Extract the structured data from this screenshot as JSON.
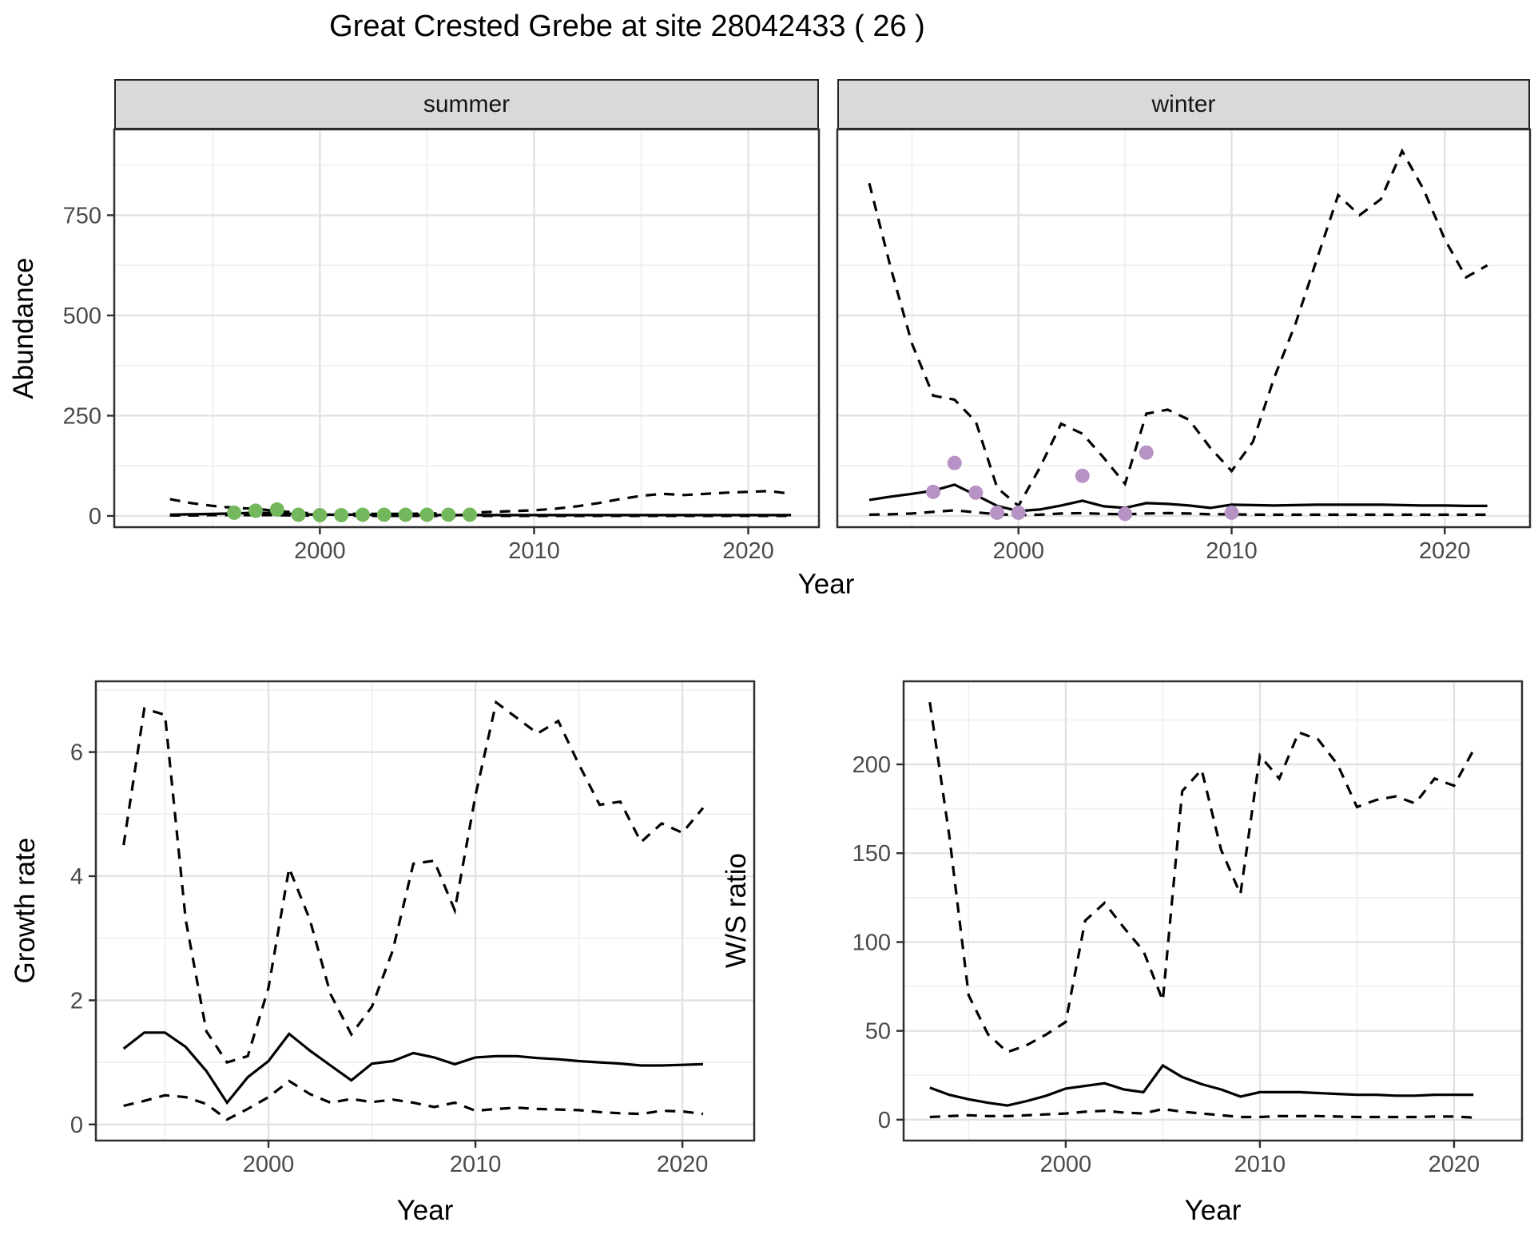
{
  "title": "Great Crested Grebe at site 28042433 ( 26 )",
  "colors": {
    "background": "#ffffff",
    "line": "#000000",
    "grid_major": "#e2e2e2",
    "grid_minor": "#efefef",
    "panel_border": "#2f2f2f",
    "strip_fill": "#d9d9d9",
    "strip_border": "#262626",
    "tick_label": "#4a4a4a",
    "summer_points": "#73b85c",
    "winter_points": "#b792c4"
  },
  "chart_data": [
    {
      "id": "abundance",
      "type": "line",
      "ylabel": "Abundance",
      "xlabel": "Year",
      "grid": true,
      "legend": "none",
      "line_styles": {
        "median": "solid",
        "upper_ci": "dashed",
        "lower_ci": "dashed"
      },
      "y_ticks": [
        0,
        250,
        500,
        750
      ],
      "y_minor": [
        125,
        375,
        625,
        875
      ],
      "x_ticks": [
        2000,
        2010,
        2020
      ],
      "x_minor": [
        1995,
        2005,
        2015
      ],
      "ylim": [
        -28,
        964
      ],
      "years": [
        1993,
        1994,
        1995,
        1996,
        1997,
        1998,
        1999,
        2000,
        2001,
        2002,
        2003,
        2004,
        2005,
        2006,
        2007,
        2008,
        2009,
        2010,
        2011,
        2012,
        2013,
        2014,
        2015,
        2016,
        2017,
        2018,
        2019,
        2020,
        2021,
        2022
      ],
      "facets": [
        {
          "label": "summer",
          "xlim": [
            1990.4,
            2023.3
          ],
          "series": {
            "median": [
              3,
              4,
              5,
              6,
              8,
              7,
              4,
              3,
              3,
              3,
              2,
              2,
              2,
              2,
              2,
              2,
              2,
              2,
              2,
              2,
              2,
              2,
              2,
              2,
              2,
              2,
              2,
              2,
              2,
              2
            ],
            "upper_ci": [
              42,
              32,
              25,
              20,
              18,
              12,
              8,
              6,
              5,
              5,
              5,
              5,
              6,
              6,
              8,
              10,
              12,
              14,
              18,
              24,
              32,
              42,
              50,
              55,
              52,
              55,
              58,
              60,
              62,
              55
            ],
            "lower_ci": [
              1,
              1,
              2,
              2,
              2,
              2,
              1,
              1,
              1,
              0,
              0,
              0,
              0,
              0,
              0,
              0,
              0,
              0,
              0,
              0,
              0,
              0,
              0,
              0,
              0,
              0,
              0,
              0,
              0,
              0
            ]
          },
          "observations": {
            "years": [
              1996,
              1997,
              1998,
              1999,
              2000,
              2001,
              2002,
              2003,
              2004,
              2005,
              2006,
              2007
            ],
            "values": [
              8,
              13,
              16,
              3,
              2,
              2,
              3,
              3,
              3,
              3,
              3,
              3
            ],
            "color": "#73b85c"
          }
        },
        {
          "label": "winter",
          "xlim": [
            1991.5,
            2024.0
          ],
          "series": {
            "median": [
              40,
              48,
              55,
              63,
              78,
              52,
              25,
              12,
              16,
              26,
              38,
              24,
              20,
              32,
              30,
              26,
              20,
              28,
              27,
              26,
              27,
              28,
              28,
              28,
              28,
              27,
              26,
              26,
              25,
              25
            ],
            "upper_ci": [
              830,
              620,
              430,
              300,
              290,
              235,
              70,
              25,
              120,
              230,
              205,
              145,
              80,
              255,
              265,
              240,
              170,
              112,
              185,
              345,
              480,
              640,
              800,
              750,
              790,
              910,
              815,
              690,
              595,
              625
            ],
            "lower_ci": [
              3,
              4,
              6,
              10,
              14,
              9,
              4,
              2,
              3,
              6,
              7,
              5,
              4,
              6,
              7,
              6,
              4,
              4,
              3,
              3,
              3,
              3,
              3,
              3,
              3,
              3,
              3,
              3,
              3,
              3
            ]
          },
          "observations": {
            "years": [
              1996,
              1997,
              1998,
              1999,
              2000,
              2003,
              2005,
              2006,
              2010
            ],
            "values": [
              60,
              132,
              58,
              8,
              8,
              100,
              5,
              158,
              8
            ],
            "color": "#b792c4"
          }
        }
      ]
    },
    {
      "id": "growth_rate",
      "type": "line",
      "ylabel": "Growth rate",
      "xlabel": "Year",
      "grid": true,
      "legend": "none",
      "line_styles": {
        "median": "solid",
        "upper_ci": "dashed",
        "lower_ci": "dashed"
      },
      "y_ticks": [
        0,
        2,
        4,
        6
      ],
      "y_minor": [
        1,
        3,
        5,
        7
      ],
      "x_ticks": [
        2000,
        2010,
        2020
      ],
      "x_minor": [
        1995,
        2005,
        2015
      ],
      "ylim": [
        -0.26,
        7.14
      ],
      "xlim": [
        1991.66,
        2023.47
      ],
      "years": [
        1993,
        1994,
        1995,
        1996,
        1997,
        1998,
        1999,
        2000,
        2001,
        2002,
        2003,
        2004,
        2005,
        2006,
        2007,
        2008,
        2009,
        2010,
        2011,
        2012,
        2013,
        2014,
        2015,
        2016,
        2017,
        2018,
        2019,
        2020,
        2021
      ],
      "series": {
        "median": [
          1.22,
          1.48,
          1.48,
          1.25,
          0.86,
          0.35,
          0.76,
          1.02,
          1.46,
          1.19,
          0.95,
          0.71,
          0.98,
          1.02,
          1.15,
          1.08,
          0.97,
          1.08,
          1.1,
          1.1,
          1.07,
          1.05,
          1.02,
          1.0,
          0.98,
          0.95,
          0.95,
          0.96,
          0.97
        ],
        "upper_ci": [
          4.5,
          6.7,
          6.6,
          3.3,
          1.5,
          1.0,
          1.1,
          2.2,
          4.13,
          3.3,
          2.1,
          1.45,
          1.9,
          2.8,
          4.2,
          4.25,
          3.45,
          5.3,
          6.8,
          6.55,
          6.3,
          6.5,
          5.8,
          5.15,
          5.2,
          4.55,
          4.85,
          4.7,
          5.1
        ],
        "lower_ci": [
          0.3,
          0.38,
          0.47,
          0.44,
          0.33,
          0.08,
          0.25,
          0.44,
          0.7,
          0.49,
          0.35,
          0.41,
          0.36,
          0.4,
          0.35,
          0.28,
          0.35,
          0.22,
          0.25,
          0.27,
          0.25,
          0.24,
          0.23,
          0.2,
          0.18,
          0.17,
          0.22,
          0.21,
          0.17
        ]
      }
    },
    {
      "id": "ws_ratio",
      "type": "line",
      "ylabel": "W/S ratio",
      "xlabel": "Year",
      "grid": true,
      "legend": "none",
      "line_styles": {
        "median": "solid",
        "upper_ci": "dashed",
        "lower_ci": "dashed"
      },
      "y_ticks": [
        0,
        50,
        100,
        150,
        200
      ],
      "y_minor": [
        25,
        75,
        125,
        175,
        225
      ],
      "x_ticks": [
        2000,
        2010,
        2020
      ],
      "x_minor": [
        1995,
        2005,
        2015
      ],
      "ylim": [
        -11.75,
        246.75
      ],
      "xlim": [
        1991.65,
        2023.5
      ],
      "years": [
        1993,
        1994,
        1995,
        1996,
        1997,
        1998,
        1999,
        2000,
        2001,
        2002,
        2003,
        2004,
        2005,
        2006,
        2007,
        2008,
        2009,
        2010,
        2011,
        2012,
        2013,
        2014,
        2015,
        2016,
        2017,
        2018,
        2019,
        2020,
        2021
      ],
      "series": {
        "median": [
          18,
          14,
          11.5,
          9.5,
          8,
          10.5,
          13.5,
          17.5,
          19,
          20.5,
          17,
          15.5,
          30.5,
          24,
          20,
          17,
          13,
          15.5,
          15.5,
          15.5,
          15,
          14.5,
          14,
          14,
          13.5,
          13.5,
          14,
          14,
          14
        ],
        "upper_ci": [
          235,
          160,
          70,
          48,
          38,
          42,
          48,
          55,
          112,
          122,
          108,
          95,
          67,
          185,
          197,
          152,
          127,
          205,
          192,
          218,
          214,
          200,
          176,
          180,
          182,
          178,
          192,
          188,
          208
        ],
        "lower_ci": [
          1.5,
          2,
          2.5,
          2,
          2,
          2.5,
          3,
          3.5,
          4.5,
          5,
          4,
          3.5,
          6,
          4.5,
          3.5,
          2.5,
          1.5,
          1.5,
          2,
          2,
          2,
          1.8,
          1.5,
          1.5,
          1.5,
          1.5,
          1.8,
          1.8,
          1.2
        ]
      }
    }
  ]
}
